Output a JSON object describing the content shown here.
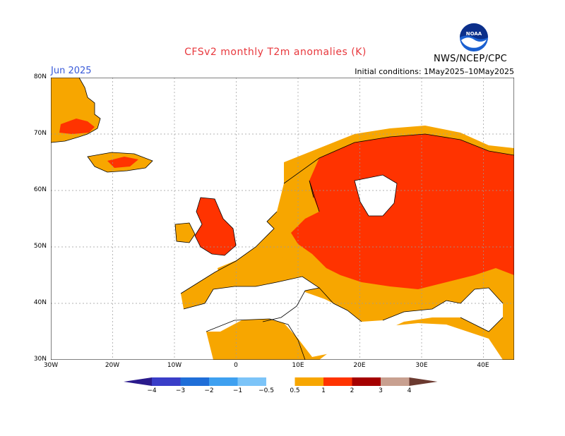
{
  "header": {
    "title": "CFSv2 monthly T2m anomalies (K)",
    "month": "Jun 2025",
    "initial_conditions": "Initial conditions:  1May2025–10May2025",
    "agency": "NWS/NCEP/CPC",
    "logo_text": "NOAA"
  },
  "map": {
    "region": "Europe",
    "lat_range": [
      30,
      80
    ],
    "lon_range": [
      -30,
      45
    ],
    "lat_labels": [
      "80N",
      "70N",
      "60N",
      "50N",
      "40N",
      "30N"
    ],
    "lon_labels": [
      "30W",
      "20W",
      "10W",
      "0",
      "10E",
      "20E",
      "30E",
      "40E"
    ],
    "gridlines": true,
    "anomaly_colors": {
      "0.5-1": "#f7a600",
      "1-2": "#ff3300",
      "2-3": "#a50000"
    }
  },
  "colorbar": {
    "labels": [
      "−4",
      "−3",
      "−2",
      "−1",
      "−0.5",
      "0.5",
      "1",
      "2",
      "3",
      "4"
    ],
    "colors": [
      "#2a1a8c",
      "#3a3ec8",
      "#1f6ed8",
      "#3ea0f0",
      "#7cc4f8",
      "#ffffff",
      "#f7a600",
      "#ff3300",
      "#a50000",
      "#c8a090",
      "#6b3a30"
    ]
  }
}
